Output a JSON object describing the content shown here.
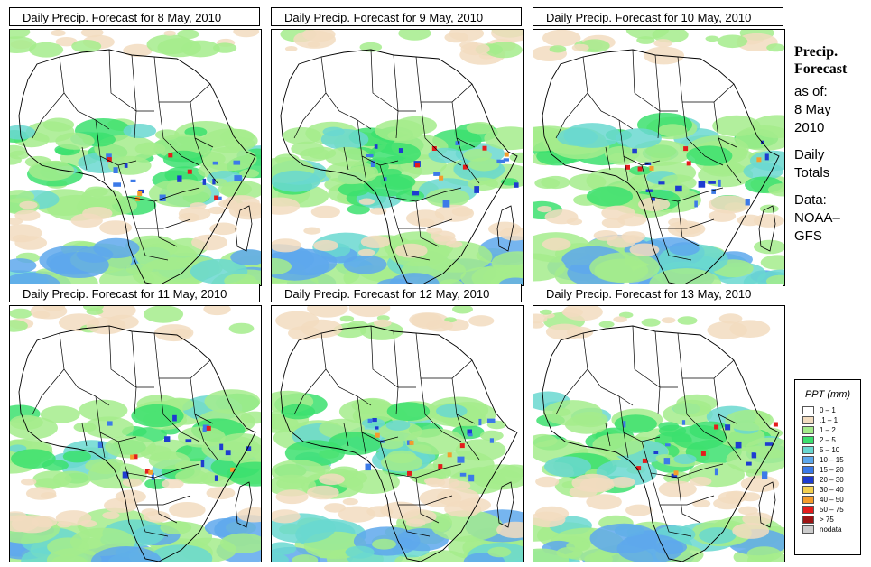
{
  "panels": [
    {
      "title": "Daily Precip. Forecast for  8 May, 2010"
    },
    {
      "title": "Daily Precip. Forecast for  9 May, 2010"
    },
    {
      "title": "Daily Precip. Forecast for  10 May, 2010"
    },
    {
      "title": "Daily Precip. Forecast for  11 May, 2010"
    },
    {
      "title": "Daily Precip. Forecast for  12 May, 2010"
    },
    {
      "title": "Daily Precip. Forecast for  13 May, 2010"
    }
  ],
  "sidebar": {
    "heading1": "Precip.",
    "heading2": "Forecast",
    "asof": "as of:",
    "date1": "8 May",
    "date2": "2010",
    "daily1": "Daily",
    "daily2": "Totals",
    "data1": "Data:",
    "data2": "NOAA–",
    "data3": "GFS"
  },
  "legend": {
    "title": "PPT (mm)",
    "items": [
      {
        "label": "0 – 1",
        "color": "#ffffff"
      },
      {
        "label": ".1 – 1",
        "color": "#f2dcc0"
      },
      {
        "label": "1 – 2",
        "color": "#a4ec8c"
      },
      {
        "label": "2 – 5",
        "color": "#3ce06e"
      },
      {
        "label": "5 – 10",
        "color": "#6ad8d0"
      },
      {
        "label": "10 – 15",
        "color": "#5ea8ec"
      },
      {
        "label": "15 – 20",
        "color": "#3c7ae8"
      },
      {
        "label": "20 – 30",
        "color": "#1e3cd0"
      },
      {
        "label": "30 – 40",
        "color": "#f4d050"
      },
      {
        "label": "40 – 50",
        "color": "#f49c2c"
      },
      {
        "label": "50 – 75",
        "color": "#e41c1c"
      },
      {
        "label": "> 75",
        "color": "#9c1414"
      },
      {
        "label": "nodata",
        "color": "#cccccc"
      }
    ]
  }
}
